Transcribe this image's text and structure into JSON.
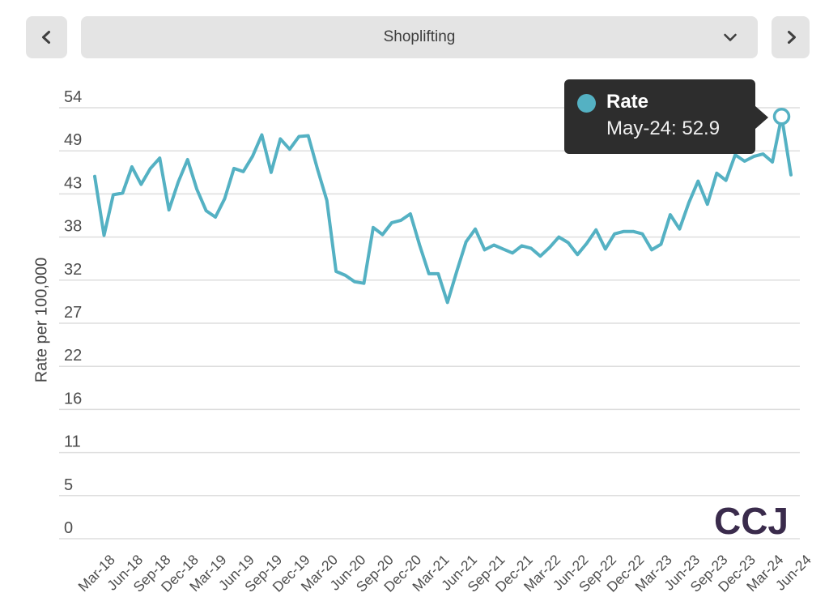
{
  "toolbar": {
    "prev_button": {
      "icon": "chevron-left"
    },
    "selected_option": "Shoplifting",
    "dropdown_icon": "chevron-down",
    "next_button": {
      "icon": "chevron-right"
    }
  },
  "tooltip": {
    "series_label": "Rate",
    "value_text": "May-24: 52.9"
  },
  "footer": {
    "logo_text": "CCJ"
  },
  "colors": {
    "accent_teal": "#54b1c3",
    "tooltip_bg": "#2d2d2d",
    "logo_purple": "#3a2b4c",
    "gridline": "#dedede",
    "topbar_bg": "#e4e4e4"
  },
  "chart_data": {
    "type": "line",
    "title": "Shoplifting",
    "ylabel": "Rate per 100,000",
    "ylim": [
      0,
      54
    ],
    "yticks": [
      0,
      5,
      11,
      16,
      22,
      27,
      32,
      38,
      43,
      49,
      54
    ],
    "grid": "horizontal",
    "legend": "none",
    "x_frequency": "monthly",
    "categories": [
      "Mar-18",
      "Jun-18",
      "Sep-18",
      "Dec-18",
      "Mar-19",
      "Jun-19",
      "Sep-19",
      "Dec-19",
      "Mar-20",
      "Jun-20",
      "Sep-20",
      "Dec-20",
      "Mar-21",
      "Jun-21",
      "Sep-21",
      "Dec-21",
      "Mar-22",
      "Jun-22",
      "Sep-22",
      "Dec-22",
      "Mar-23",
      "Jun-23",
      "Sep-23",
      "Dec-23",
      "Mar-24",
      "Jun-24"
    ],
    "highlight_index": 74,
    "highlight": {
      "x": "May-24",
      "value": 52.9,
      "series": "Rate"
    },
    "series": [
      {
        "name": "Rate",
        "color": "#54b1c3",
        "start": "Mar-18",
        "values": [
          45.4,
          38.0,
          43.1,
          43.3,
          46.6,
          44.4,
          46.4,
          47.7,
          41.2,
          44.7,
          47.5,
          43.8,
          41.1,
          40.3,
          42.6,
          46.4,
          46.0,
          47.9,
          50.6,
          45.9,
          50.1,
          48.8,
          50.4,
          50.5,
          46.3,
          42.4,
          33.5,
          33.0,
          32.2,
          32.0,
          39.0,
          38.1,
          39.6,
          39.9,
          40.7,
          36.8,
          33.2,
          33.2,
          29.6,
          33.5,
          37.2,
          38.8,
          36.2,
          36.8,
          36.3,
          35.8,
          36.7,
          36.4,
          35.4,
          36.5,
          37.8,
          37.1,
          35.6,
          37.0,
          38.7,
          36.3,
          38.2,
          38.5,
          38.5,
          38.2,
          36.2,
          36.9,
          40.6,
          38.8,
          42.1,
          44.8,
          41.9,
          45.8,
          44.9,
          48.1,
          47.3,
          47.9,
          48.2,
          47.2,
          52.9,
          45.6
        ]
      }
    ]
  }
}
